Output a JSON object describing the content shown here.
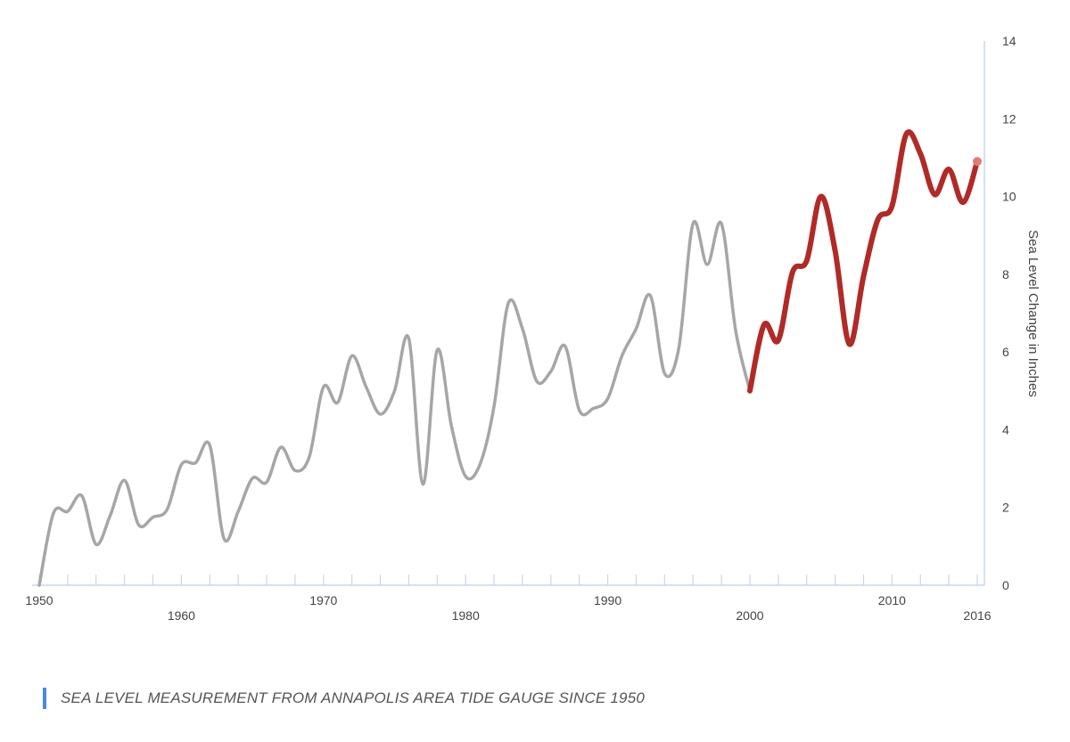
{
  "caption": "SEA LEVEL MEASUREMENT FROM ANNAPOLIS AREA TIDE GAUGE SINCE 1950",
  "chart_data": {
    "type": "line",
    "title": "",
    "xlabel": "",
    "ylabel": "Sea Level Change in Inches",
    "xlim": [
      1950,
      2016
    ],
    "ylim": [
      0,
      14
    ],
    "y_ticks": [
      0,
      2,
      4,
      6,
      8,
      10,
      12,
      14
    ],
    "x_tick_labels": [
      "1950",
      "1960",
      "1970",
      "1980",
      "1990",
      "2000",
      "2010",
      "2016"
    ],
    "grid": false,
    "colors": {
      "historic": "#a6a6a6",
      "recent": "#b02a26",
      "axis": "#c9d6ea",
      "caption_bar": "#4a86e8"
    },
    "series": [
      {
        "color": "#a6a6a6",
        "x": [
          1950,
          1951,
          1952,
          1953,
          1954,
          1955,
          1956,
          1957,
          1958,
          1959,
          1960,
          1961,
          1962,
          1963,
          1964,
          1965,
          1966,
          1967,
          1968,
          1969,
          1970,
          1971,
          1972,
          1973,
          1974,
          1975,
          1976,
          1977,
          1978,
          1979,
          1980,
          1981,
          1982,
          1983,
          1984,
          1985,
          1986,
          1987,
          1988,
          1989,
          1990,
          1991,
          1992,
          1993,
          1994,
          1995,
          1996,
          1997,
          1998,
          1999,
          2000
        ],
        "values": [
          0.0,
          1.85,
          1.9,
          2.3,
          1.05,
          1.8,
          2.7,
          1.55,
          1.75,
          1.95,
          3.1,
          3.15,
          3.6,
          1.2,
          1.9,
          2.75,
          2.65,
          3.55,
          2.95,
          3.3,
          5.1,
          4.7,
          5.9,
          5.1,
          4.4,
          5.0,
          6.35,
          2.6,
          6.05,
          4.1,
          2.8,
          3.1,
          4.6,
          7.25,
          6.6,
          5.25,
          5.5,
          6.15,
          4.5,
          4.55,
          4.8,
          5.9,
          6.6,
          7.45,
          5.45,
          6.1,
          9.3,
          8.25,
          9.3,
          6.55,
          5.0
        ]
      },
      {
        "color": "#b02a26",
        "x": [
          2000,
          2001,
          2002,
          2003,
          2004,
          2005,
          2006,
          2007,
          2008,
          2009,
          2010,
          2011,
          2012,
          2013,
          2014,
          2015,
          2016
        ],
        "values": [
          5.0,
          6.7,
          6.3,
          8.05,
          8.35,
          10.0,
          8.6,
          6.2,
          7.95,
          9.4,
          9.75,
          11.6,
          11.1,
          10.05,
          10.7,
          9.85,
          10.9
        ]
      }
    ]
  }
}
